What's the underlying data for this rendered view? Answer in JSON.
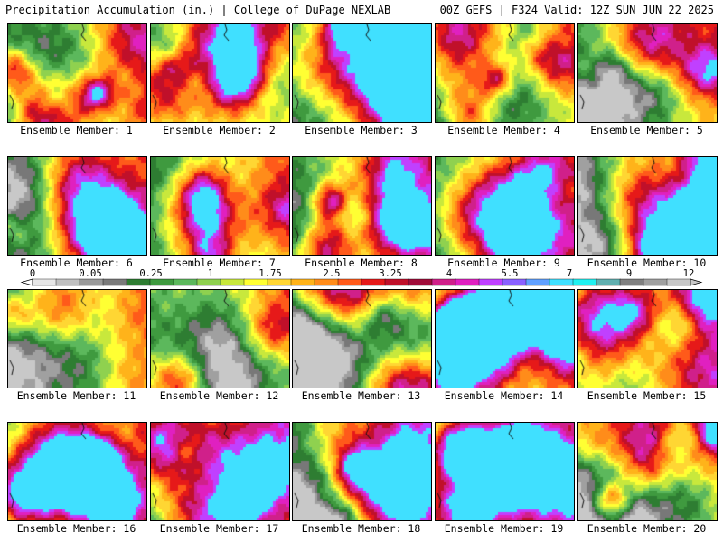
{
  "header": {
    "left": "Precipitation Accumulation (in.) | College of DuPage NEXLAB",
    "right": "00Z GEFS | F324 Valid: 12Z SUN JUN 22 2025"
  },
  "members": [
    "Ensemble Member: 1",
    "Ensemble Member: 2",
    "Ensemble Member: 3",
    "Ensemble Member: 4",
    "Ensemble Member: 5",
    "Ensemble Member: 6",
    "Ensemble Member: 7",
    "Ensemble Member: 8",
    "Ensemble Member: 9",
    "Ensemble Member: 10",
    "Ensemble Member: 11",
    "Ensemble Member: 12",
    "Ensemble Member: 13",
    "Ensemble Member: 14",
    "Ensemble Member: 15",
    "Ensemble Member: 16",
    "Ensemble Member: 17",
    "Ensemble Member: 18",
    "Ensemble Member: 19",
    "Ensemble Member: 20"
  ],
  "color_scale": {
    "labels": [
      "0",
      "0.05",
      "0.25",
      "1",
      "1.75",
      "2.5",
      "3.25",
      "4",
      "5.5",
      "7",
      "9",
      "12"
    ],
    "colors": [
      "#e6e6e6",
      "#c0c0c0",
      "#9a9a9a",
      "#7a7a7a",
      "#2e7d32",
      "#3f9a3f",
      "#5cb85c",
      "#8fd14f",
      "#c8e83c",
      "#ffff33",
      "#ffd633",
      "#ffb31a",
      "#ff8c1a",
      "#ff5a1a",
      "#e61919",
      "#c0102a",
      "#a00c3a",
      "#d0208a",
      "#e020c0",
      "#c040ff",
      "#8a60ff",
      "#60a0ff",
      "#40e0ff",
      "#20f0f0",
      "#60b0b0",
      "#808080",
      "#a0a0a0",
      "#c8c8c8"
    ]
  }
}
